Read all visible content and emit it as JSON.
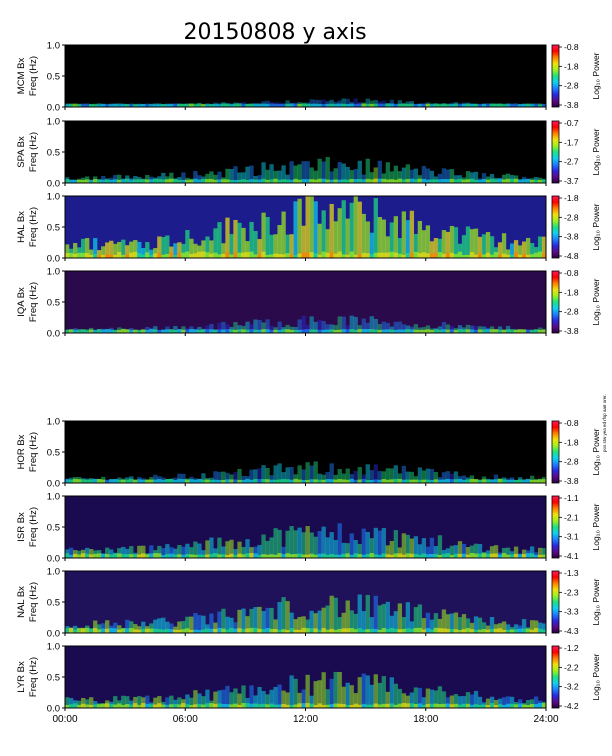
{
  "title": "20150808 y axis",
  "side_note": "pos stw yea ed rfsp aa6 orer.",
  "colorbar_label": "Log₁₀ Power",
  "colormap": [
    "#2a003a",
    "#5b0a8c",
    "#2a2adf",
    "#1e7fff",
    "#10d0f0",
    "#20e080",
    "#a0f020",
    "#f0e010",
    "#ff8000",
    "#ff0000",
    "#ff1a5a"
  ],
  "chart_data": {
    "type": "heatmap",
    "title": "20150808 y axis",
    "xlim": [
      0,
      24
    ],
    "x_ticks": [
      "00:00",
      "06:00",
      "12:00",
      "18:00",
      "24:00"
    ],
    "ylim": [
      0,
      1.0
    ],
    "y_ticks": [
      "0.0",
      "0.5",
      "1.0"
    ],
    "panels": [
      {
        "station": "MCM Bx",
        "ylabel": "Freq (Hz)",
        "cbar_ticks": [
          "-0.8",
          "-1.8",
          "-2.8",
          "-3.8"
        ],
        "background": "#000000",
        "activity": 0.12
      },
      {
        "station": "SPA Bx",
        "ylabel": "Freq (Hz)",
        "cbar_ticks": [
          "-0.7",
          "-1.7",
          "-2.7",
          "-3.7"
        ],
        "background": "#000000",
        "activity": 0.35
      },
      {
        "station": "HAL Bx",
        "ylabel": "Freq (Hz)",
        "cbar_ticks": [
          "-1.8",
          "-2.8",
          "-3.8",
          "-4.8"
        ],
        "background": "#1c1c8c",
        "activity": 0.9
      },
      {
        "station": "IQA Bx",
        "ylabel": "Freq (Hz)",
        "cbar_ticks": [
          "-0.8",
          "-1.8",
          "-2.8",
          "-3.8"
        ],
        "background": "#2a0a4a",
        "activity": 0.25
      },
      {
        "station": "HOR Bx",
        "ylabel": "Freq (Hz)",
        "cbar_ticks": [
          "-0.8",
          "-1.8",
          "-2.8",
          "-3.8"
        ],
        "background": "#000000",
        "activity": 0.3
      },
      {
        "station": "ISR Bx",
        "ylabel": "Freq (Hz)",
        "cbar_ticks": [
          "-1.1",
          "-2.1",
          "-3.1",
          "-4.1"
        ],
        "background": "#1a0a50",
        "activity": 0.5
      },
      {
        "station": "NAL Bx",
        "ylabel": "Freq (Hz)",
        "cbar_ticks": [
          "-1.3",
          "-2.3",
          "-3.3",
          "-4.3"
        ],
        "background": "#20125a",
        "activity": 0.55
      },
      {
        "station": "LYR Bx",
        "ylabel": "Freq (Hz)",
        "cbar_ticks": [
          "-1.2",
          "-2.2",
          "-3.2",
          "-4.2"
        ],
        "background": "#1a0a50",
        "activity": 0.5
      }
    ]
  }
}
